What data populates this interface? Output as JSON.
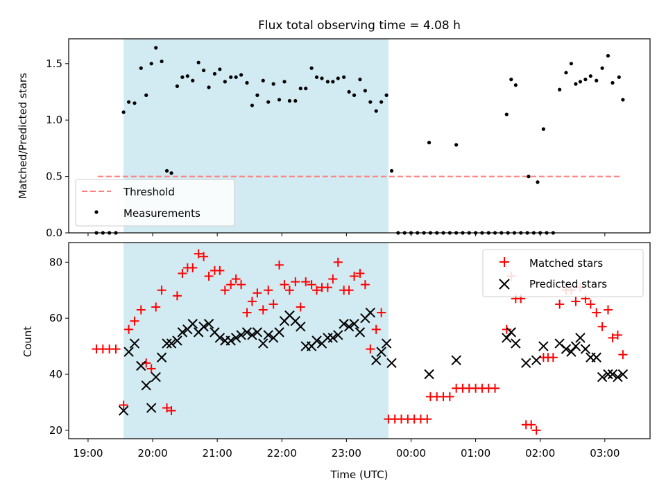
{
  "chart_data": {
    "title": "Flux total observing time = 4.08 h",
    "xlabel": "Time (UTC)",
    "xlim": [
      18.7,
      27.7
    ],
    "x_ticks": [
      19,
      20,
      21,
      22,
      23,
      24,
      25,
      26,
      27
    ],
    "x_tick_labels": [
      "19:00",
      "20:00",
      "21:00",
      "22:00",
      "23:00",
      "00:00",
      "01:00",
      "02:00",
      "03:00"
    ],
    "observing_window": [
      19.55,
      23.65
    ],
    "colors": {
      "window": "#add8e6",
      "threshold": "#ff7f7f",
      "matched": "#ff0000",
      "predicted": "#000000",
      "measurement": "#000000"
    },
    "top": {
      "type": "scatter",
      "ylabel": "Matched/Predicted stars",
      "ylim": [
        0,
        1.72
      ],
      "y_ticks": [
        0.0,
        0.5,
        1.0,
        1.5
      ],
      "y_tick_labels": [
        "0.0",
        "0.5",
        "1.0",
        "1.5"
      ],
      "legend_position": "lower-left",
      "threshold": {
        "name": "Threshold",
        "value": 0.5,
        "x_range": [
          19.15,
          27.25
        ]
      },
      "measurements": {
        "name": "Measurements",
        "points": [
          [
            19.13,
            0
          ],
          [
            19.23,
            0
          ],
          [
            19.33,
            0
          ],
          [
            19.43,
            0
          ],
          [
            19.55,
            1.07
          ],
          [
            19.63,
            1.16
          ],
          [
            19.72,
            1.15
          ],
          [
            19.82,
            1.46
          ],
          [
            19.9,
            1.22
          ],
          [
            19.98,
            1.5
          ],
          [
            20.05,
            1.64
          ],
          [
            20.14,
            1.52
          ],
          [
            20.22,
            0.55
          ],
          [
            20.29,
            0.53
          ],
          [
            20.38,
            1.3
          ],
          [
            20.46,
            1.38
          ],
          [
            20.54,
            1.39
          ],
          [
            20.62,
            1.35
          ],
          [
            20.71,
            1.51
          ],
          [
            20.79,
            1.44
          ],
          [
            20.87,
            1.29
          ],
          [
            20.96,
            1.41
          ],
          [
            21.04,
            1.45
          ],
          [
            21.12,
            1.34
          ],
          [
            21.21,
            1.38
          ],
          [
            21.29,
            1.38
          ],
          [
            21.37,
            1.4
          ],
          [
            21.46,
            1.33
          ],
          [
            21.54,
            1.13
          ],
          [
            21.62,
            1.22
          ],
          [
            21.71,
            1.35
          ],
          [
            21.79,
            1.16
          ],
          [
            21.87,
            1.32
          ],
          [
            21.96,
            1.18
          ],
          [
            22.04,
            1.34
          ],
          [
            22.12,
            1.17
          ],
          [
            22.21,
            1.17
          ],
          [
            22.29,
            1.28
          ],
          [
            22.37,
            1.28
          ],
          [
            22.46,
            1.46
          ],
          [
            22.54,
            1.38
          ],
          [
            22.62,
            1.37
          ],
          [
            22.71,
            1.34
          ],
          [
            22.79,
            1.34
          ],
          [
            22.87,
            1.37
          ],
          [
            22.96,
            1.38
          ],
          [
            23.04,
            1.25
          ],
          [
            23.12,
            1.22
          ],
          [
            23.21,
            1.36
          ],
          [
            23.29,
            1.26
          ],
          [
            23.37,
            1.16
          ],
          [
            23.46,
            1.08
          ],
          [
            23.54,
            1.16
          ],
          [
            23.62,
            1.22
          ],
          [
            23.7,
            0.55
          ],
          [
            23.8,
            0
          ],
          [
            23.9,
            0
          ],
          [
            24.0,
            0
          ],
          [
            24.1,
            0
          ],
          [
            24.2,
            0
          ],
          [
            24.3,
            0
          ],
          [
            24.4,
            0
          ],
          [
            24.5,
            0
          ],
          [
            24.6,
            0
          ],
          [
            24.7,
            0
          ],
          [
            24.8,
            0
          ],
          [
            24.9,
            0
          ],
          [
            25.0,
            0
          ],
          [
            25.1,
            0
          ],
          [
            25.2,
            0
          ],
          [
            25.3,
            0
          ],
          [
            25.4,
            0
          ],
          [
            25.5,
            0
          ],
          [
            25.6,
            0
          ],
          [
            25.7,
            0
          ],
          [
            25.8,
            0
          ],
          [
            25.9,
            0
          ],
          [
            26.0,
            0
          ],
          [
            26.1,
            0
          ],
          [
            26.2,
            0
          ],
          [
            24.28,
            0.8
          ],
          [
            24.7,
            0.78
          ],
          [
            25.48,
            1.05
          ],
          [
            25.55,
            1.36
          ],
          [
            25.62,
            1.31
          ],
          [
            25.82,
            0.5
          ],
          [
            25.96,
            0.45
          ],
          [
            26.05,
            0.92
          ],
          [
            26.3,
            1.27
          ],
          [
            26.4,
            1.42
          ],
          [
            26.48,
            1.5
          ],
          [
            26.55,
            1.32
          ],
          [
            26.62,
            1.34
          ],
          [
            26.7,
            1.36
          ],
          [
            26.78,
            1.39
          ],
          [
            26.87,
            1.35
          ],
          [
            26.96,
            1.46
          ],
          [
            27.05,
            1.57
          ],
          [
            27.12,
            1.33
          ],
          [
            27.22,
            1.38
          ],
          [
            27.28,
            1.18
          ]
        ]
      }
    },
    "bottom": {
      "type": "scatter",
      "ylabel": "Count",
      "ylim": [
        17,
        87
      ],
      "y_ticks": [
        20,
        40,
        60,
        80
      ],
      "y_tick_labels": [
        "20",
        "40",
        "60",
        "80"
      ],
      "legend_position": "upper-right",
      "series": [
        {
          "name": "Matched stars",
          "marker": "plus",
          "points": [
            [
              19.13,
              49
            ],
            [
              19.23,
              49
            ],
            [
              19.33,
              49
            ],
            [
              19.43,
              49
            ],
            [
              19.55,
              29
            ],
            [
              19.63,
              56
            ],
            [
              19.72,
              59
            ],
            [
              19.82,
              63
            ],
            [
              19.9,
              44
            ],
            [
              19.98,
              42
            ],
            [
              20.05,
              64
            ],
            [
              20.14,
              70
            ],
            [
              20.22,
              28
            ],
            [
              20.29,
              27
            ],
            [
              20.38,
              68
            ],
            [
              20.46,
              76
            ],
            [
              20.54,
              78
            ],
            [
              20.62,
              78
            ],
            [
              20.71,
              83
            ],
            [
              20.79,
              82
            ],
            [
              20.87,
              75
            ],
            [
              20.96,
              77
            ],
            [
              21.04,
              77
            ],
            [
              21.12,
              70
            ],
            [
              21.21,
              72
            ],
            [
              21.29,
              74
            ],
            [
              21.37,
              72
            ],
            [
              21.46,
              62
            ],
            [
              21.54,
              66
            ],
            [
              21.62,
              69
            ],
            [
              21.71,
              63
            ],
            [
              21.79,
              70
            ],
            [
              21.87,
              65
            ],
            [
              21.96,
              79
            ],
            [
              22.04,
              72
            ],
            [
              22.12,
              70
            ],
            [
              22.21,
              73
            ],
            [
              22.29,
              64
            ],
            [
              22.37,
              73
            ],
            [
              22.46,
              72
            ],
            [
              22.54,
              70
            ],
            [
              22.62,
              71
            ],
            [
              22.71,
              71
            ],
            [
              22.79,
              74
            ],
            [
              22.87,
              80
            ],
            [
              22.96,
              70
            ],
            [
              23.04,
              70
            ],
            [
              23.12,
              75
            ],
            [
              23.21,
              76
            ],
            [
              23.29,
              72
            ],
            [
              23.37,
              49
            ],
            [
              23.46,
              56
            ],
            [
              23.54,
              62
            ],
            [
              23.65,
              24
            ],
            [
              23.75,
              24
            ],
            [
              23.85,
              24
            ],
            [
              23.95,
              24
            ],
            [
              24.05,
              24
            ],
            [
              24.15,
              24
            ],
            [
              24.25,
              24
            ],
            [
              24.3,
              32
            ],
            [
              24.4,
              32
            ],
            [
              24.5,
              32
            ],
            [
              24.6,
              32
            ],
            [
              24.7,
              35
            ],
            [
              24.8,
              35
            ],
            [
              24.9,
              35
            ],
            [
              25.0,
              35
            ],
            [
              25.1,
              35
            ],
            [
              25.2,
              35
            ],
            [
              25.3,
              35
            ],
            [
              25.48,
              56
            ],
            [
              25.55,
              75
            ],
            [
              25.62,
              67
            ],
            [
              25.7,
              67
            ],
            [
              25.78,
              22
            ],
            [
              25.86,
              22
            ],
            [
              25.94,
              20
            ],
            [
              26.05,
              46
            ],
            [
              26.12,
              46
            ],
            [
              26.2,
              46
            ],
            [
              26.3,
              65
            ],
            [
              26.4,
              70
            ],
            [
              26.48,
              70
            ],
            [
              26.55,
              66
            ],
            [
              26.62,
              71
            ],
            [
              26.7,
              67
            ],
            [
              26.78,
              65
            ],
            [
              26.87,
              62
            ],
            [
              26.96,
              57
            ],
            [
              27.05,
              63
            ],
            [
              27.12,
              53
            ],
            [
              27.2,
              54
            ],
            [
              27.28,
              47
            ]
          ]
        },
        {
          "name": "Predicted stars",
          "marker": "x",
          "points": [
            [
              19.55,
              27
            ],
            [
              19.63,
              48
            ],
            [
              19.72,
              51
            ],
            [
              19.82,
              43
            ],
            [
              19.9,
              36
            ],
            [
              19.98,
              28
            ],
            [
              20.05,
              39
            ],
            [
              20.14,
              46
            ],
            [
              20.22,
              51
            ],
            [
              20.29,
              51
            ],
            [
              20.38,
              52
            ],
            [
              20.46,
              55
            ],
            [
              20.54,
              56
            ],
            [
              20.62,
              58
            ],
            [
              20.71,
              55
            ],
            [
              20.79,
              57
            ],
            [
              20.87,
              58
            ],
            [
              20.96,
              55
            ],
            [
              21.04,
              53
            ],
            [
              21.12,
              52
            ],
            [
              21.21,
              52
            ],
            [
              21.29,
              53
            ],
            [
              21.37,
              54
            ],
            [
              21.46,
              55
            ],
            [
              21.54,
              54
            ],
            [
              21.62,
              55
            ],
            [
              21.71,
              51
            ],
            [
              21.79,
              54
            ],
            [
              21.87,
              53
            ],
            [
              21.96,
              55
            ],
            [
              22.04,
              59
            ],
            [
              22.12,
              61
            ],
            [
              22.21,
              59
            ],
            [
              22.29,
              57
            ],
            [
              22.37,
              50
            ],
            [
              22.46,
              50
            ],
            [
              22.54,
              52
            ],
            [
              22.62,
              51
            ],
            [
              22.71,
              53
            ],
            [
              22.79,
              53
            ],
            [
              22.87,
              54
            ],
            [
              22.96,
              58
            ],
            [
              23.04,
              57
            ],
            [
              23.12,
              58
            ],
            [
              23.21,
              55
            ],
            [
              23.29,
              60
            ],
            [
              23.37,
              62
            ],
            [
              23.46,
              45
            ],
            [
              23.54,
              48
            ],
            [
              23.62,
              51
            ],
            [
              23.7,
              44
            ],
            [
              24.28,
              40
            ],
            [
              24.7,
              45
            ],
            [
              25.48,
              53
            ],
            [
              25.55,
              55
            ],
            [
              25.62,
              51
            ],
            [
              25.78,
              44
            ],
            [
              25.94,
              45
            ],
            [
              26.05,
              50
            ],
            [
              26.3,
              51
            ],
            [
              26.4,
              49
            ],
            [
              26.48,
              48
            ],
            [
              26.55,
              50
            ],
            [
              26.62,
              53
            ],
            [
              26.7,
              49
            ],
            [
              26.78,
              46
            ],
            [
              26.87,
              46
            ],
            [
              26.96,
              39
            ],
            [
              27.05,
              40
            ],
            [
              27.12,
              40
            ],
            [
              27.2,
              39
            ],
            [
              27.28,
              40
            ]
          ]
        }
      ]
    }
  }
}
